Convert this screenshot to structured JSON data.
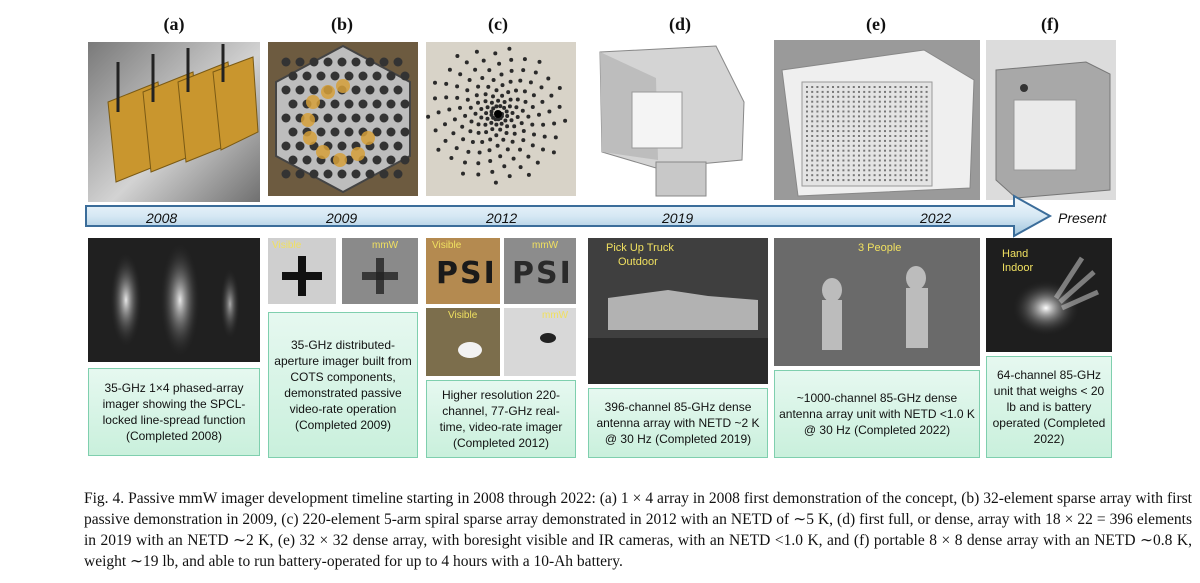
{
  "panels": [
    {
      "letter": "(a)",
      "caption": "35-GHz 1×4 phased-array imager showing the SPCL-locked line-spread function (Completed 2008)"
    },
    {
      "letter": "(b)",
      "caption": "35-GHz distributed-aperture imager built from COTS components, demonstrated passive video-rate operation (Completed 2009)"
    },
    {
      "letter": "(c)",
      "caption": "Higher resolution 220-channel, 77-GHz real-time, video-rate imager (Completed 2012)"
    },
    {
      "letter": "(d)",
      "caption": "396-channel 85-GHz dense antenna array with NETD ~2 K @ 30 Hz (Completed 2019)"
    },
    {
      "letter": "(e)",
      "caption": "~1000-channel 85-GHz dense antenna array unit with NETD <1.0 K @ 30 Hz (Completed 2022)"
    },
    {
      "letter": "(f)",
      "caption": "64-channel 85-GHz unit that weighs < 20 lb and is battery operated (Completed 2022)"
    }
  ],
  "timeline": {
    "years": [
      "2008",
      "2009",
      "2012",
      "2019",
      "2022"
    ],
    "end_label": "Present"
  },
  "image_labels": {
    "b_visible": "Visible",
    "b_mmw": "mmW",
    "c_visible_1": "Visible",
    "c_mmw_1": "mmW",
    "c_visible_2": "Visible",
    "c_mmw_2": "mmW",
    "d_label_1": "Pick Up Truck",
    "d_label_2": "Outdoor",
    "e_label": "3 People",
    "f_label_1": "Hand",
    "f_label_2": "Indoor",
    "psi_text": "PSI"
  },
  "figure_caption": "Fig. 4.    Passive mmW imager development timeline starting in 2008 through 2022: (a) 1 × 4 array in 2008 first demonstration of the concept, (b) 32-element sparse array with first passive demonstration in 2009, (c) 220-element 5-arm spiral sparse array demonstrated in 2012 with an NETD of ∼5 K, (d) first full, or dense, array with 18 × 22 = 396 elements in 2019 with an NETD ∼2 K, (e) 32 × 32 dense array, with boresight visible and IR cameras, with an NETD <1.0 K, and (f) portable 8 × 8 dense array with an NETD ∼0.8 K, weight ∼19 lb, and able to run battery-operated for up to 4 hours with a 10-Ah battery.",
  "colors": {
    "caption_fill": "#d6f3e4",
    "caption_border": "#7fcfae",
    "arrow_light": "#e4f0f8",
    "arrow_dark": "#9fc4dc"
  }
}
